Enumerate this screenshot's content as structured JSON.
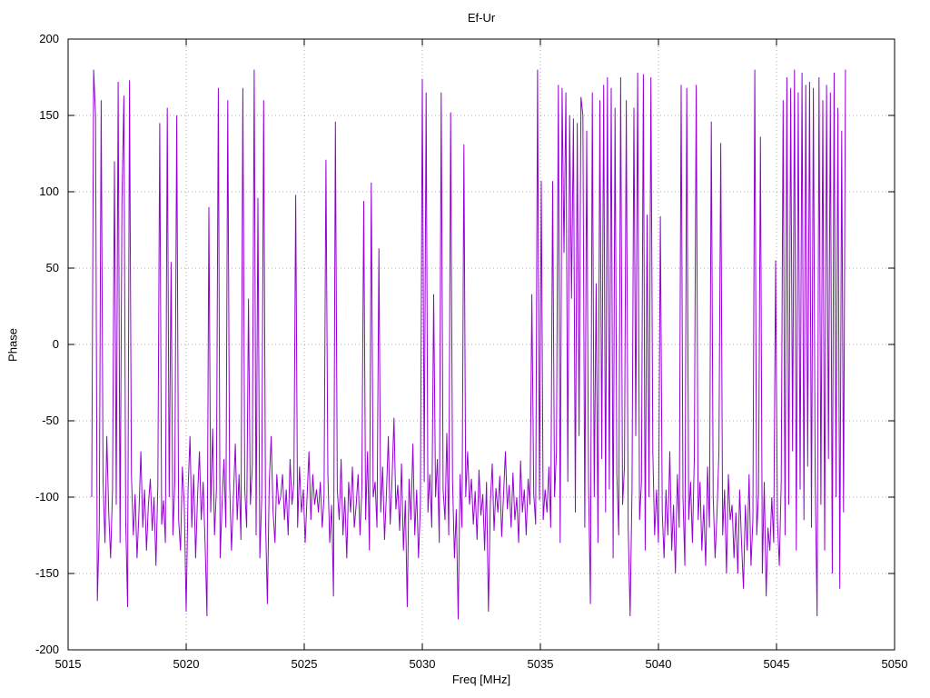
{
  "chart_data": {
    "type": "line",
    "title": "Ef-Ur",
    "xlabel": "Freq [MHz]",
    "ylabel": "Phase",
    "xlim": [
      5015,
      5050
    ],
    "ylim": [
      -200,
      200
    ],
    "xticks": [
      5015,
      5020,
      5025,
      5030,
      5035,
      5040,
      5045,
      5050
    ],
    "yticks": [
      -200,
      -150,
      -100,
      -50,
      0,
      50,
      100,
      150,
      200
    ],
    "grid": true,
    "legend": false,
    "line_color": "#9400d3",
    "series": [
      {
        "name": "Ef-Ur",
        "x_start": 5016.0,
        "x_step": 0.08,
        "values": [
          -100,
          180,
          150,
          -168,
          -120,
          160,
          -90,
          -130,
          -60,
          -110,
          -140,
          -95,
          120,
          -105,
          172,
          -130,
          95,
          163,
          -115,
          -172,
          173,
          -85,
          -125,
          -98,
          -140,
          -110,
          -70,
          -120,
          -95,
          -135,
          -105,
          -88,
          -122,
          -100,
          -145,
          -92,
          145,
          -118,
          -102,
          -130,
          155,
          -100,
          54,
          -125,
          -90,
          150,
          -115,
          -135,
          -80,
          -105,
          -175,
          -95,
          -60,
          -120,
          -85,
          -140,
          -100,
          -70,
          -115,
          -90,
          -130,
          -178,
          90,
          -110,
          -55,
          -125,
          -95,
          168,
          -140,
          -105,
          -75,
          -120,
          160,
          -90,
          -135,
          -100,
          -65,
          -115,
          -85,
          -128,
          168,
          -95,
          -120,
          30,
          -105,
          -80,
          180,
          -125,
          96,
          -140,
          -100,
          160,
          -115,
          -170,
          -90,
          -60,
          -110,
          -130,
          -85,
          -105,
          -100,
          -85,
          -115,
          -95,
          -125,
          -75,
          -105,
          -90,
          98,
          -120,
          -80,
          -110,
          -95,
          -130,
          -100,
          -70,
          -115,
          -85,
          -105,
          -95,
          -110,
          -90,
          -120,
          -100,
          121,
          -85,
          -130,
          -105,
          -165,
          146,
          -95,
          -115,
          -75,
          -125,
          -100,
          -140,
          -90,
          -110,
          -80,
          -120,
          -105,
          -85,
          -125,
          -95,
          94,
          -115,
          -70,
          -135,
          106,
          -100,
          -90,
          -120,
          63,
          -110,
          -80,
          -128,
          -98,
          -60,
          -118,
          -88,
          -48,
          -108,
          -92,
          -122,
          -78,
          -135,
          -102,
          -172,
          -88,
          -115,
          -65,
          -125,
          -95,
          -140,
          -105,
          174,
          -90,
          165,
          -110,
          -85,
          -120,
          33,
          -100,
          -75,
          -130,
          165,
          -95,
          -115,
          -58,
          -125,
          152,
          -90,
          -140,
          -108,
          -180,
          -85,
          -120,
          131,
          -100,
          -70,
          -105,
          -88,
          -118,
          -96,
          -128,
          -82,
          -112,
          -98,
          -135,
          -90,
          -175,
          -104,
          -78,
          -122,
          -94,
          -110,
          -86,
          -126,
          -99,
          -70,
          -108,
          -92,
          -120,
          -84,
          -115,
          -100,
          -130,
          -76,
          -110,
          -95,
          -125,
          -88,
          -105,
          33,
          -98,
          -118,
          180,
          -102,
          107,
          -115,
          -95,
          -110,
          -80,
          -120,
          107,
          -100,
          -70,
          170,
          -130,
          168,
          60,
          165,
          -90,
          150,
          30,
          148,
          -110,
          145,
          -60,
          162,
          150,
          -120,
          140,
          -90,
          -170,
          165,
          -100,
          40,
          -130,
          160,
          -75,
          170,
          -110,
          175,
          -95,
          168,
          -140,
          155,
          -85,
          -125,
          175,
          -105,
          -80,
          160,
          -120,
          -178,
          -95,
          155,
          -60,
          178,
          -115,
          -90,
          177,
          -135,
          85,
          -100,
          175,
          -70,
          -125,
          -95,
          -130,
          84,
          -110,
          -140,
          -95,
          -125,
          -70,
          -135,
          -105,
          -150,
          -85,
          -120,
          170,
          -100,
          -145,
          168,
          -115,
          -90,
          -130,
          -75,
          170,
          -115,
          -90,
          -135,
          -105,
          -145,
          -80,
          -120,
          146,
          -100,
          -140,
          -110,
          -70,
          132,
          -125,
          -95,
          -150,
          -85,
          -115,
          -105,
          -140,
          -110,
          -150,
          -95,
          -130,
          -160,
          -105,
          -135,
          -85,
          -145,
          -115,
          180,
          -125,
          -98,
          136,
          -150,
          -90,
          -165,
          -120,
          -135,
          -100,
          -130,
          55,
          -115,
          -145,
          -90,
          160,
          -125,
          175,
          -105,
          168,
          -70,
          180,
          -135,
          165,
          -95,
          178,
          -115,
          170,
          -80,
          172,
          -120,
          168,
          -90,
          -178,
          175,
          -105,
          160,
          -135,
          170,
          -75,
          165,
          -150,
          178,
          -100,
          155,
          -160,
          140,
          -110,
          180
        ]
      }
    ]
  }
}
